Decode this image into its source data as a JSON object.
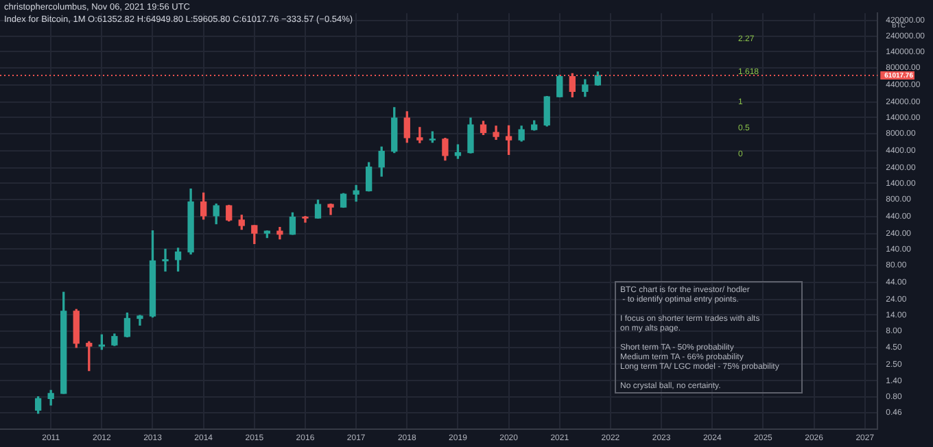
{
  "chart_data": {
    "type": "candlestick",
    "title": "christophercolumbus, Nov 06, 2021 19:56 UTC",
    "subtitle": "Index for Bitcoin, 1M  O:61352.82 H:64949.80 L:59605.80 C:61017.76 −333.57 (−0.54%)",
    "x": [
      "2010-10",
      "2011-01",
      "2011-04",
      "2011-07",
      "2011-10",
      "2012-01",
      "2012-04",
      "2012-07",
      "2012-10",
      "2013-01",
      "2013-04",
      "2013-07",
      "2013-10",
      "2014-01",
      "2014-04",
      "2014-07",
      "2014-10",
      "2015-01",
      "2015-04",
      "2015-07",
      "2015-10",
      "2016-01",
      "2016-04",
      "2016-07",
      "2016-10",
      "2017-01",
      "2017-04",
      "2017-07",
      "2017-10",
      "2018-01",
      "2018-04",
      "2018-07",
      "2018-10",
      "2019-01",
      "2019-04",
      "2019-07",
      "2019-10",
      "2020-01",
      "2020-04",
      "2020-07",
      "2020-10",
      "2021-01",
      "2021-04",
      "2021-07",
      "2021-10"
    ],
    "ohlc": [
      [
        0.5,
        0.8,
        0.45,
        0.75
      ],
      [
        0.75,
        1,
        0.6,
        0.9
      ],
      [
        0.9,
        31,
        0.9,
        16
      ],
      [
        16,
        17,
        4.5,
        5.2
      ],
      [
        5.2,
        5.5,
        2,
        4.7
      ],
      [
        4.7,
        7,
        4.2,
        4.9
      ],
      [
        4.9,
        7.2,
        4.8,
        6.6
      ],
      [
        6.6,
        15,
        6.5,
        12.4
      ],
      [
        12.4,
        13.8,
        9.8,
        13.5
      ],
      [
        13.5,
        266,
        13,
        93
      ],
      [
        93,
        140,
        65,
        97
      ],
      [
        97,
        145,
        65,
        127
      ],
      [
        127,
        1150,
        118,
        732
      ],
      [
        732,
        1000,
        400,
        450
      ],
      [
        450,
        680,
        340,
        640
      ],
      [
        640,
        650,
        375,
        388
      ],
      [
        388,
        460,
        280,
        320
      ],
      [
        320,
        320,
        170,
        245
      ],
      [
        245,
        265,
        210,
        263
      ],
      [
        263,
        300,
        200,
        236
      ],
      [
        236,
        500,
        235,
        430
      ],
      [
        430,
        440,
        360,
        416
      ],
      [
        416,
        780,
        415,
        670
      ],
      [
        670,
        680,
        470,
        610
      ],
      [
        610,
        980,
        605,
        960
      ],
      [
        960,
        1300,
        750,
        1080
      ],
      [
        1080,
        2900,
        1070,
        2480
      ],
      [
        2480,
        5000,
        1800,
        4300
      ],
      [
        4300,
        19800,
        4100,
        13800
      ],
      [
        13800,
        17200,
        5900,
        6900
      ],
      [
        6900,
        9900,
        5800,
        6400
      ],
      [
        6400,
        8500,
        5900,
        6600
      ],
      [
        6600,
        6800,
        3150,
        3700
      ],
      [
        3700,
        5400,
        3350,
        4100
      ],
      [
        4100,
        13800,
        4050,
        10800
      ],
      [
        10800,
        12300,
        7700,
        8300
      ],
      [
        8300,
        10400,
        6500,
        7200
      ],
      [
        7200,
        10500,
        3850,
        6400
      ],
      [
        6400,
        10400,
        6150,
        9150
      ],
      [
        9150,
        12500,
        9000,
        10800
      ],
      [
        10800,
        29300,
        10400,
        29000
      ],
      [
        29000,
        61800,
        28800,
        58800
      ],
      [
        58800,
        64900,
        28800,
        35000
      ],
      [
        35000,
        52900,
        29300,
        43800
      ],
      [
        43800,
        69000,
        43300,
        61017.76
      ]
    ],
    "colors": [
      "#26a69a",
      "#26a69a",
      "#26a69a",
      "#ef5350",
      "#ef5350",
      "#26a69a",
      "#26a69a",
      "#26a69a",
      "#26a69a",
      "#26a69a",
      "#26a69a",
      "#26a69a",
      "#26a69a",
      "#ef5350",
      "#26a69a",
      "#ef5350",
      "#ef5350",
      "#ef5350",
      "#26a69a",
      "#ef5350",
      "#26a69a",
      "#ef5350",
      "#26a69a",
      "#ef5350",
      "#26a69a",
      "#26a69a",
      "#26a69a",
      "#26a69a",
      "#26a69a",
      "#ef5350",
      "#ef5350",
      "#26a69a",
      "#ef5350",
      "#26a69a",
      "#26a69a",
      "#ef5350",
      "#ef5350",
      "#ef5350",
      "#26a69a",
      "#26a69a",
      "#26a69a",
      "#26a69a",
      "#ef5350",
      "#26a69a",
      "#26a69a"
    ],
    "log": true,
    "xlim": [
      "2010-01",
      "2027-04"
    ],
    "ylim": [
      0.26,
      540000
    ],
    "xticks": [
      {
        "value": "2011-01",
        "label": "2011"
      },
      {
        "value": "2012-01",
        "label": "2012"
      },
      {
        "value": "2013-01",
        "label": "2013"
      },
      {
        "value": "2014-01",
        "label": "2014"
      },
      {
        "value": "2015-01",
        "label": "2015"
      },
      {
        "value": "2016-01",
        "label": "2016"
      },
      {
        "value": "2017-01",
        "label": "2017"
      },
      {
        "value": "2018-01",
        "label": "2018"
      },
      {
        "value": "2019-01",
        "label": "2019"
      },
      {
        "value": "2020-01",
        "label": "2020"
      },
      {
        "value": "2021-01",
        "label": "2021"
      },
      {
        "value": "2022-01",
        "label": "2022"
      },
      {
        "value": "2023-01",
        "label": "2023"
      },
      {
        "value": "2024-01",
        "label": "2024"
      },
      {
        "value": "2025-01",
        "label": "2025"
      },
      {
        "value": "2026-01",
        "label": "2026"
      },
      {
        "value": "2027-01",
        "label": "2027"
      }
    ],
    "yticks": [
      {
        "value": 420000,
        "label": "420000.00"
      },
      {
        "value": 240000,
        "label": "240000.00"
      },
      {
        "value": 140000,
        "label": "140000.00"
      },
      {
        "value": 80000,
        "label": "80000.00"
      },
      {
        "value": 44000,
        "label": "44000.00"
      },
      {
        "value": 24000,
        "label": "24000.00"
      },
      {
        "value": 14000,
        "label": "14000.00"
      },
      {
        "value": 8000,
        "label": "8000.00"
      },
      {
        "value": 4400,
        "label": "4400.00"
      },
      {
        "value": 2400,
        "label": "2400.00"
      },
      {
        "value": 1400,
        "label": "1400.00"
      },
      {
        "value": 800,
        "label": "800.00"
      },
      {
        "value": 440,
        "label": "440.00"
      },
      {
        "value": 240,
        "label": "240.00"
      },
      {
        "value": 140,
        "label": "140.00"
      },
      {
        "value": 80,
        "label": "80.00"
      },
      {
        "value": 44,
        "label": "44.00"
      },
      {
        "value": 24,
        "label": "24.00"
      },
      {
        "value": 14,
        "label": "14.00"
      },
      {
        "value": 8,
        "label": "8.00"
      },
      {
        "value": 4.5,
        "label": "4.50"
      },
      {
        "value": 2.5,
        "label": "2.50"
      },
      {
        "value": 1.4,
        "label": "1.40"
      },
      {
        "value": 0.8,
        "label": "0.80"
      },
      {
        "value": 0.46,
        "label": "0.46"
      }
    ],
    "grid": true,
    "ref_lines": [
      {
        "axis": "y",
        "value": 61017.76,
        "label": "61017.76",
        "color": "#ef5350",
        "line_style": "dotted"
      }
    ],
    "annotations": [
      "BTC chart is for the investor/ hodler\n - to identify optimal entry points.\n\nI focus on shorter term trades with alts\non my alts page.\n\nShort term TA - 50% probability\nMedium term TA - 66% probability\nLong term TA/ LGC model - 75% probability\n\nNo crystal ball, no certainty.",
      "BTC",
      "2.27",
      "1.618",
      "1",
      "0.5",
      "0"
    ]
  }
}
